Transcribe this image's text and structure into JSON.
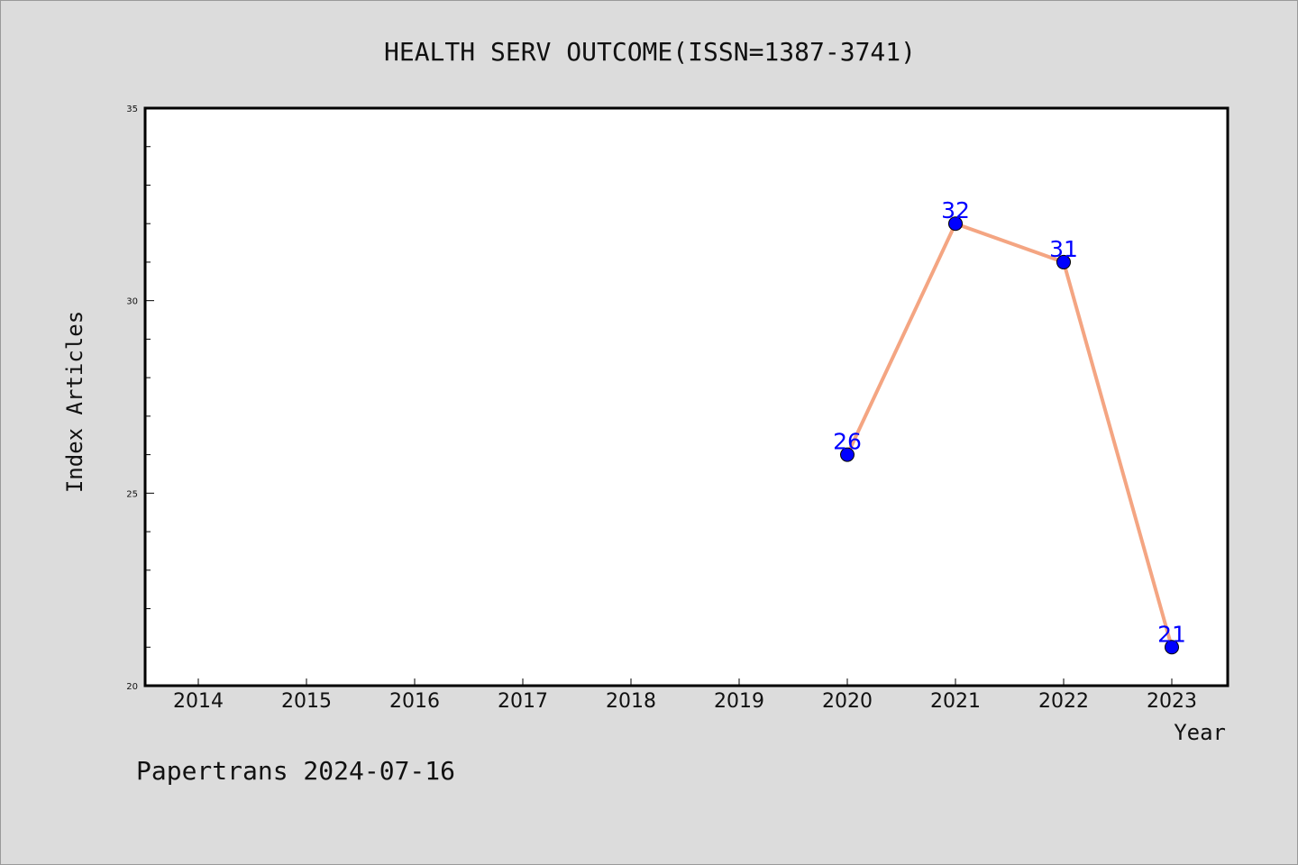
{
  "chart_data": {
    "type": "line",
    "title": "HEALTH SERV OUTCOME(ISSN=1387-3741)",
    "xlabel": "Year",
    "ylabel": "Index Articles",
    "categories": [
      "2014",
      "2015",
      "2016",
      "2017",
      "2018",
      "2019",
      "2020",
      "2021",
      "2022",
      "2023"
    ],
    "series": [
      {
        "x": [
          "2020",
          "2021",
          "2022",
          "2023"
        ],
        "values": [
          26,
          32,
          31,
          21
        ]
      }
    ],
    "yticks": [
      20,
      25,
      30,
      35
    ],
    "ylim": [
      20,
      35
    ],
    "grid": false,
    "line_color": "#f4a582",
    "marker_color": "#0000ff",
    "label_color": "#0000ff"
  },
  "footer": "Papertrans 2024-07-16"
}
